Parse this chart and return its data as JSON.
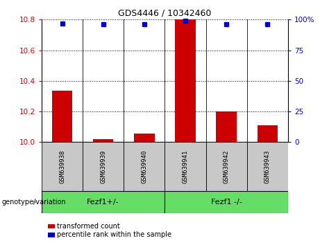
{
  "title": "GDS4446 / 10342460",
  "samples": [
    "GSM639938",
    "GSM639939",
    "GSM639940",
    "GSM639941",
    "GSM639942",
    "GSM639943"
  ],
  "transformed_counts": [
    10.335,
    10.02,
    10.055,
    10.8,
    10.2,
    10.11
  ],
  "percentile_ranks": [
    97,
    96,
    96,
    99,
    96,
    96
  ],
  "ylim_left": [
    10.0,
    10.8
  ],
  "ylim_right": [
    0,
    100
  ],
  "yticks_left": [
    10.0,
    10.2,
    10.4,
    10.6,
    10.8
  ],
  "yticks_right": [
    0,
    25,
    50,
    75,
    100
  ],
  "ytick_labels_right": [
    "0",
    "25",
    "50",
    "75",
    "100%"
  ],
  "groups": [
    {
      "label": "Fezf1+/-",
      "start": 0,
      "end": 3
    },
    {
      "label": "Fezf1 -/-",
      "start": 3,
      "end": 6
    }
  ],
  "bar_color": "#cc0000",
  "dot_color": "#0000cc",
  "bar_width": 0.5,
  "bg_color": "#ffffff",
  "tick_label_color_left": "#cc0000",
  "tick_label_color_right": "#0000cc",
  "legend_items": [
    {
      "color": "#cc0000",
      "label": "transformed count"
    },
    {
      "color": "#0000cc",
      "label": "percentile rank within the sample"
    }
  ],
  "sample_box_color": "#c8c8c8",
  "group_bar_color": "#66dd66",
  "genotype_label": "genotype/variation",
  "title_fontsize": 9,
  "tick_fontsize": 7.5,
  "sample_fontsize": 6.5,
  "group_fontsize": 8,
  "legend_fontsize": 7
}
